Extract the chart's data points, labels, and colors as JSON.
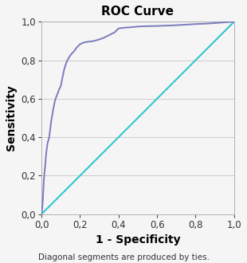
{
  "title": "ROC Curve",
  "xlabel": "1 - Specificity",
  "ylabel": "Sensitivity",
  "footnote": "Diagonal segments are produced by ties.",
  "xlim": [
    0.0,
    1.0
  ],
  "ylim": [
    0.0,
    1.0
  ],
  "xticks": [
    0.0,
    0.2,
    0.4,
    0.6,
    0.8,
    1.0
  ],
  "yticks": [
    0.0,
    0.2,
    0.4,
    0.6,
    0.8,
    1.0
  ],
  "xtick_labels": [
    "0,0",
    "0,2",
    "0,4",
    "0,6",
    "0,8",
    "1,0"
  ],
  "ytick_labels": [
    "0,0",
    "0,2",
    "0,4",
    "0,6",
    "0,8",
    "1,0"
  ],
  "roc_color": "#7b7bbf",
  "diagonal_color": "#2ec8d0",
  "background_color": "#f5f5f5",
  "grid_color": "#cccccc",
  "title_fontsize": 11,
  "label_fontsize": 10,
  "tick_fontsize": 8.5,
  "footnote_fontsize": 7.5,
  "roc_x": [
    0.0,
    0.003,
    0.006,
    0.008,
    0.01,
    0.012,
    0.014,
    0.016,
    0.018,
    0.02,
    0.022,
    0.025,
    0.028,
    0.03,
    0.033,
    0.036,
    0.04,
    0.045,
    0.05,
    0.055,
    0.06,
    0.065,
    0.07,
    0.075,
    0.08,
    0.085,
    0.09,
    0.095,
    0.1,
    0.105,
    0.11,
    0.115,
    0.12,
    0.125,
    0.13,
    0.135,
    0.14,
    0.145,
    0.15,
    0.155,
    0.16,
    0.165,
    0.17,
    0.175,
    0.18,
    0.185,
    0.19,
    0.195,
    0.2,
    0.21,
    0.22,
    0.23,
    0.24,
    0.26,
    0.28,
    0.3,
    0.32,
    0.34,
    0.36,
    0.38,
    0.4,
    0.42,
    0.44,
    0.46,
    0.48,
    0.5,
    0.55,
    0.6,
    0.65,
    0.7,
    0.75,
    0.8,
    0.85,
    0.9,
    0.95,
    1.0
  ],
  "roc_y": [
    0.0,
    0.02,
    0.06,
    0.09,
    0.13,
    0.175,
    0.2,
    0.22,
    0.24,
    0.26,
    0.29,
    0.32,
    0.345,
    0.36,
    0.375,
    0.385,
    0.4,
    0.44,
    0.48,
    0.51,
    0.54,
    0.565,
    0.59,
    0.605,
    0.618,
    0.63,
    0.645,
    0.655,
    0.665,
    0.69,
    0.715,
    0.74,
    0.76,
    0.775,
    0.79,
    0.8,
    0.81,
    0.818,
    0.825,
    0.832,
    0.837,
    0.842,
    0.848,
    0.855,
    0.862,
    0.868,
    0.873,
    0.878,
    0.883,
    0.888,
    0.892,
    0.894,
    0.896,
    0.898,
    0.902,
    0.908,
    0.915,
    0.925,
    0.935,
    0.945,
    0.965,
    0.968,
    0.97,
    0.971,
    0.973,
    0.975,
    0.977,
    0.978,
    0.98,
    0.982,
    0.985,
    0.988,
    0.99,
    0.993,
    0.997,
    1.0
  ]
}
